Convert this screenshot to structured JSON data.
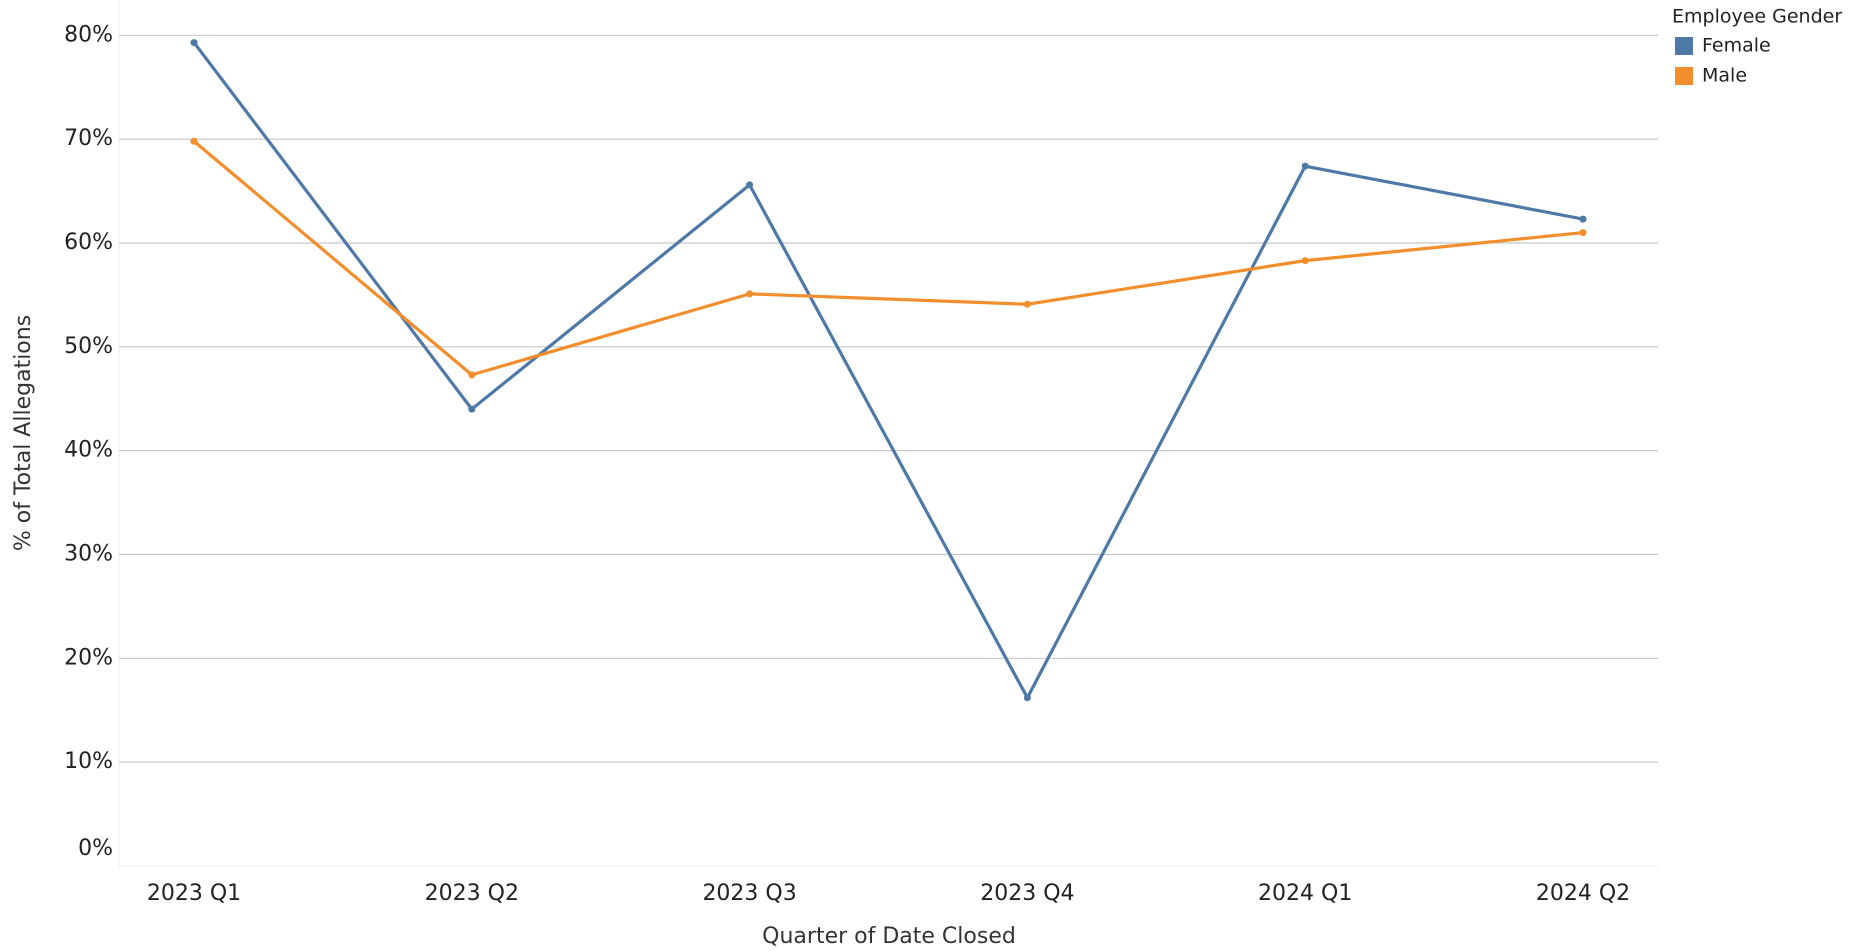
{
  "chart_data": {
    "type": "line",
    "categories": [
      "2023 Q1",
      "2023 Q2",
      "2023 Q3",
      "2023 Q4",
      "2024 Q1",
      "2024 Q2"
    ],
    "series": [
      {
        "name": "Female",
        "color": "#4e79a7",
        "values": [
          79.3,
          44.0,
          65.6,
          16.2,
          67.4,
          62.3
        ]
      },
      {
        "name": "Male",
        "color": "#f28e2b",
        "values": [
          69.8,
          47.3,
          55.1,
          54.1,
          58.3,
          61.0
        ]
      }
    ],
    "ylim": [
      0,
      83.4
    ],
    "yticks": [
      {
        "value": 0,
        "label": "0%"
      },
      {
        "value": 10,
        "label": "10%"
      },
      {
        "value": 20,
        "label": "20%"
      },
      {
        "value": 30,
        "label": "30%"
      },
      {
        "value": 40,
        "label": "40%"
      },
      {
        "value": 50,
        "label": "50%"
      },
      {
        "value": 60,
        "label": "60%"
      },
      {
        "value": 70,
        "label": "70%"
      },
      {
        "value": 80,
        "label": "80%"
      }
    ],
    "xlabel": "Quarter of Date Closed",
    "ylabel": "% of Total Allegations",
    "legend_title": "Employee Gender",
    "legend_position": "top-right",
    "grid": true
  }
}
